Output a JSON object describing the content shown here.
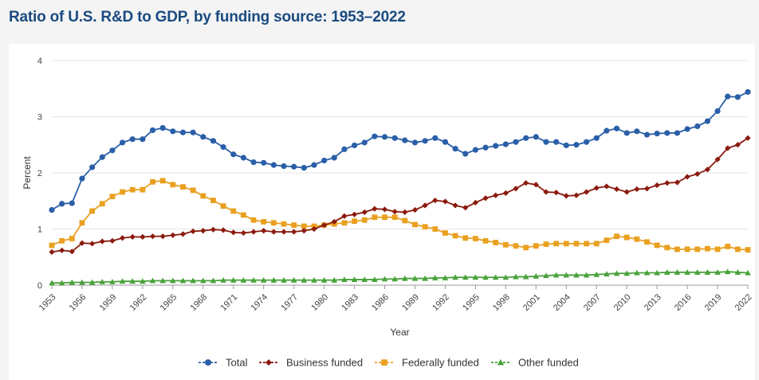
{
  "title": "Ratio of U.S. R&D to GDP, by funding source: 1953–2022",
  "chart_data": {
    "type": "line",
    "xlabel": "Year",
    "ylabel": "Percent",
    "ylim": [
      0,
      4
    ],
    "yticks": [
      "0",
      "1",
      "2",
      "3",
      "4"
    ],
    "xticks": [
      "1953",
      "1956",
      "1959",
      "1962",
      "1965",
      "1968",
      "1971",
      "1974",
      "1977",
      "1980",
      "1983",
      "1986",
      "1989",
      "1992",
      "1995",
      "1998",
      "2001",
      "2004",
      "2007",
      "2010",
      "2013",
      "2016",
      "2019",
      "2022"
    ],
    "x_start": 1953,
    "grid": "horizontal",
    "legend_position": "bottom",
    "series": [
      {
        "name": "Total",
        "color": "#2a5fa8",
        "marker": "circle",
        "values": [
          1.34,
          1.45,
          1.46,
          1.9,
          2.1,
          2.28,
          2.4,
          2.54,
          2.6,
          2.6,
          2.76,
          2.8,
          2.74,
          2.72,
          2.72,
          2.64,
          2.57,
          2.46,
          2.33,
          2.27,
          2.19,
          2.18,
          2.14,
          2.12,
          2.11,
          2.09,
          2.14,
          2.22,
          2.27,
          2.42,
          2.49,
          2.54,
          2.65,
          2.64,
          2.62,
          2.58,
          2.54,
          2.57,
          2.62,
          2.55,
          2.43,
          2.34,
          2.41,
          2.45,
          2.48,
          2.51,
          2.55,
          2.62,
          2.64,
          2.55,
          2.55,
          2.49,
          2.5,
          2.55,
          2.62,
          2.75,
          2.79,
          2.71,
          2.74,
          2.68,
          2.7,
          2.71,
          2.71,
          2.78,
          2.83,
          2.92,
          3.1,
          3.36,
          3.35,
          3.44
        ]
      },
      {
        "name": "Business funded",
        "color": "#8b1a0e",
        "marker": "diamond",
        "values": [
          0.59,
          0.62,
          0.6,
          0.75,
          0.74,
          0.78,
          0.79,
          0.84,
          0.86,
          0.86,
          0.87,
          0.87,
          0.89,
          0.91,
          0.96,
          0.97,
          0.99,
          0.98,
          0.94,
          0.93,
          0.95,
          0.97,
          0.95,
          0.95,
          0.95,
          0.97,
          1.0,
          1.07,
          1.13,
          1.23,
          1.26,
          1.3,
          1.36,
          1.35,
          1.31,
          1.3,
          1.34,
          1.42,
          1.51,
          1.49,
          1.42,
          1.38,
          1.47,
          1.55,
          1.6,
          1.64,
          1.72,
          1.82,
          1.79,
          1.66,
          1.65,
          1.59,
          1.6,
          1.66,
          1.73,
          1.76,
          1.71,
          1.66,
          1.71,
          1.72,
          1.78,
          1.82,
          1.83,
          1.93,
          1.98,
          2.06,
          2.24,
          2.44,
          2.5,
          2.62
        ]
      },
      {
        "name": "Federally funded",
        "color": "#e9a020",
        "marker": "square",
        "values": [
          0.71,
          0.79,
          0.83,
          1.11,
          1.32,
          1.45,
          1.58,
          1.66,
          1.7,
          1.7,
          1.84,
          1.86,
          1.79,
          1.75,
          1.69,
          1.59,
          1.51,
          1.41,
          1.32,
          1.25,
          1.16,
          1.13,
          1.11,
          1.09,
          1.07,
          1.05,
          1.05,
          1.07,
          1.09,
          1.11,
          1.14,
          1.16,
          1.21,
          1.21,
          1.21,
          1.15,
          1.08,
          1.04,
          1.0,
          0.93,
          0.88,
          0.84,
          0.83,
          0.79,
          0.76,
          0.72,
          0.7,
          0.67,
          0.7,
          0.73,
          0.74,
          0.74,
          0.74,
          0.74,
          0.74,
          0.8,
          0.87,
          0.85,
          0.82,
          0.77,
          0.71,
          0.67,
          0.64,
          0.64,
          0.64,
          0.65,
          0.64,
          0.69,
          0.64,
          0.63
        ]
      },
      {
        "name": "Other funded",
        "color": "#49a23b",
        "marker": "triangle",
        "values": [
          0.04,
          0.04,
          0.05,
          0.05,
          0.05,
          0.06,
          0.06,
          0.07,
          0.07,
          0.07,
          0.08,
          0.08,
          0.08,
          0.08,
          0.08,
          0.08,
          0.08,
          0.09,
          0.09,
          0.09,
          0.09,
          0.09,
          0.09,
          0.09,
          0.09,
          0.09,
          0.09,
          0.09,
          0.09,
          0.1,
          0.1,
          0.1,
          0.1,
          0.11,
          0.11,
          0.12,
          0.12,
          0.12,
          0.13,
          0.13,
          0.14,
          0.14,
          0.14,
          0.14,
          0.14,
          0.14,
          0.15,
          0.15,
          0.16,
          0.17,
          0.18,
          0.18,
          0.18,
          0.18,
          0.19,
          0.2,
          0.21,
          0.21,
          0.22,
          0.22,
          0.22,
          0.23,
          0.23,
          0.23,
          0.23,
          0.23,
          0.23,
          0.24,
          0.23,
          0.22
        ]
      }
    ]
  }
}
